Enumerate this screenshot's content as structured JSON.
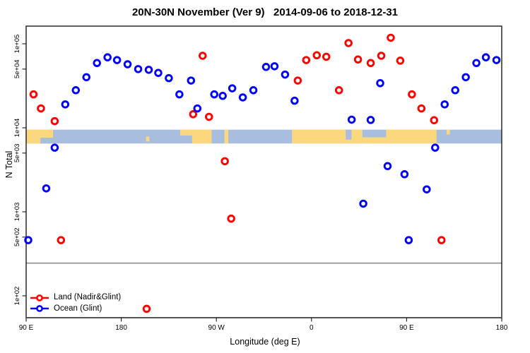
{
  "title": "20N-30N November (Ver 9)   2014-09-06 to 2018-12-31",
  "chart_data": {
    "type": "scatter",
    "title": "20N-30N November (Ver 9)   2014-09-06 to 2018-12-31",
    "xlabel": "Longitude (deg E)",
    "ylabel": "N Total",
    "y_scale": "log",
    "x_axis_note": "axis spans 450 longitude degrees eastward from 90E: 90E -> 180 -> 90W -> 0 -> 90E -> 180",
    "x_ticks": [
      {
        "axis_deg": 90,
        "label": "90 E"
      },
      {
        "axis_deg": 180,
        "label": "180"
      },
      {
        "axis_deg": 270,
        "label": "90 W"
      },
      {
        "axis_deg": 360,
        "label": "0"
      },
      {
        "axis_deg": 450,
        "label": "90 E"
      },
      {
        "axis_deg": 540,
        "label": "180"
      }
    ],
    "y_ticks": [
      {
        "value": 100000,
        "label": "1e+05"
      },
      {
        "value": 50000,
        "label": "5e+04"
      },
      {
        "value": 10000,
        "label": "1e+04"
      },
      {
        "value": 5000,
        "label": "5e+03"
      },
      {
        "value": 1000,
        "label": "1e+03"
      },
      {
        "value": 500,
        "label": "5e+02"
      },
      {
        "value": 100,
        "label": "1e+02"
      }
    ],
    "threshold_line_value": 245,
    "map_band": {
      "description": "20N-30N world-map strip drawn across the plot (land=yellow, ocean=blue)",
      "value_top": 9500,
      "value_bottom": 6500,
      "ocean_color": "#A9BEDE",
      "land_color": "#FBD87D",
      "land_segments": [
        [
          0.0,
          0.0565,
          0,
          1
        ],
        [
          0.252,
          0.259,
          0.5,
          0.35
        ],
        [
          0.324,
          0.349,
          0,
          0.42
        ],
        [
          0.349,
          0.39,
          0,
          1
        ],
        [
          0.417,
          0.425,
          0,
          1
        ],
        [
          0.559,
          0.707,
          0,
          1
        ],
        [
          0.707,
          0.757,
          0.55,
          0.45
        ],
        [
          0.757,
          0.863,
          0,
          1
        ],
        [
          0.884,
          0.891,
          0,
          0.35
        ]
      ],
      "ocean_patches": [
        [
          0.03,
          0.0565,
          0.58,
          0.42
        ],
        [
          0.672,
          0.684,
          0,
          0.72
        ]
      ]
    },
    "series": [
      {
        "name": "Land (Nadir&Glint)",
        "color": "#FF0000",
        "points": [
          [
            97,
            25000
          ],
          [
            104,
            17000
          ],
          [
            117,
            12000
          ],
          [
            123,
            460
          ],
          [
            204,
            70
          ],
          [
            248,
            14500
          ],
          [
            257,
            72000
          ],
          [
            263,
            13500
          ],
          [
            278,
            4000
          ],
          [
            284,
            830
          ],
          [
            347,
            36500
          ],
          [
            355,
            64000
          ],
          [
            365,
            73000
          ],
          [
            374,
            70000
          ],
          [
            386,
            28000
          ],
          [
            395,
            102000
          ],
          [
            404,
            65000
          ],
          [
            416,
            59000
          ],
          [
            426,
            72000
          ],
          [
            435,
            118000
          ],
          [
            444,
            63000
          ],
          [
            455,
            25000
          ],
          [
            464,
            17000
          ],
          [
            476,
            12300
          ],
          [
            483,
            460
          ]
        ]
      },
      {
        "name": "Ocean (Glint)",
        "color": "#0000FF",
        "points": [
          [
            92,
            460
          ],
          [
            109,
            1900
          ],
          [
            117,
            5800
          ],
          [
            127,
            19000
          ],
          [
            137,
            28000
          ],
          [
            147,
            40000
          ],
          [
            157,
            59000
          ],
          [
            167,
            69000
          ],
          [
            176,
            64000
          ],
          [
            186,
            57000
          ],
          [
            196,
            50000
          ],
          [
            206,
            49000
          ],
          [
            215,
            45000
          ],
          [
            225,
            39000
          ],
          [
            235,
            25000
          ],
          [
            246,
            36500
          ],
          [
            252,
            17000
          ],
          [
            268,
            25000
          ],
          [
            276,
            24000
          ],
          [
            285,
            29500
          ],
          [
            295,
            23000
          ],
          [
            305,
            28000
          ],
          [
            317,
            53000
          ],
          [
            325,
            54000
          ],
          [
            335,
            43000
          ],
          [
            344,
            21000
          ],
          [
            398,
            12500
          ],
          [
            409,
            1250
          ],
          [
            416,
            12400
          ],
          [
            425,
            34000
          ],
          [
            432,
            3500
          ],
          [
            448,
            2800
          ],
          [
            452,
            460
          ],
          [
            469,
            1850
          ],
          [
            477,
            5800
          ],
          [
            486,
            19000
          ],
          [
            496,
            28000
          ],
          [
            506,
            40000
          ],
          [
            516,
            59000
          ],
          [
            525,
            69000
          ],
          [
            535,
            64000
          ]
        ]
      }
    ]
  },
  "colors": {
    "axis": "#1a1a1a",
    "bottom_axis": "#555555",
    "threshold_line": "#999999"
  }
}
